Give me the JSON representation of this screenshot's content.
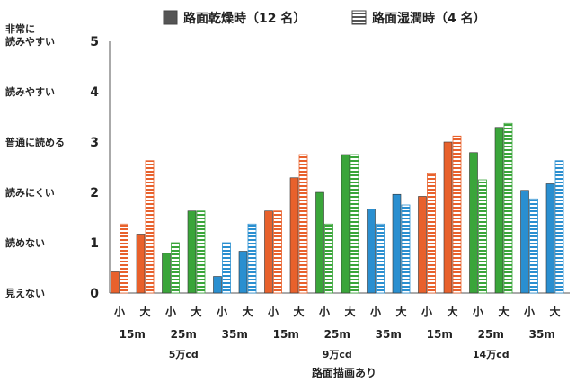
{
  "chart_data": {
    "type": "bar",
    "title": "",
    "legend": {
      "position": "top",
      "entries": [
        {
          "name": "路面乾燥時（12 名）",
          "style": "solid",
          "color": "#555555"
        },
        {
          "name": "路面湿潤時（4 名）",
          "style": "hatched",
          "color": "#555555"
        }
      ]
    },
    "xlabel": "路面描画あり",
    "ylabel": "",
    "ylim": [
      0,
      5
    ],
    "y_ticks": [
      {
        "value": 0,
        "label": "見えない"
      },
      {
        "value": 1,
        "label": "読めない"
      },
      {
        "value": 2,
        "label": "読みにくい"
      },
      {
        "value": 3,
        "label": "普通に読める"
      },
      {
        "value": 4,
        "label": "読みやすい"
      },
      {
        "value": 5,
        "label": "非常に\n読みやすい"
      }
    ],
    "grid": false,
    "series": [
      {
        "name": "路面乾燥時（12 名）",
        "style": "solid"
      },
      {
        "name": "路面湿潤時（4 名）",
        "style": "hatched"
      }
    ],
    "luminance_groups": [
      {
        "label": "5万cd",
        "distances": [
          {
            "label": "15m",
            "color": "#e8612c",
            "sizes": [
              {
                "label": "小",
                "dry": 0.42,
                "wet": 1.37
              },
              {
                "label": "大",
                "dry": 1.17,
                "wet": 2.63
              }
            ]
          },
          {
            "label": "25m",
            "color": "#3aa53a",
            "sizes": [
              {
                "label": "小",
                "dry": 0.79,
                "wet": 1.0
              },
              {
                "label": "大",
                "dry": 1.63,
                "wet": 1.63
              }
            ]
          },
          {
            "label": "35m",
            "color": "#2a8fd0",
            "sizes": [
              {
                "label": "小",
                "dry": 0.33,
                "wet": 1.0
              },
              {
                "label": "大",
                "dry": 0.83,
                "wet": 1.37
              }
            ]
          }
        ]
      },
      {
        "label": "9万cd",
        "distances": [
          {
            "label": "15m",
            "color": "#e8612c",
            "sizes": [
              {
                "label": "小",
                "dry": 1.63,
                "wet": 1.63
              },
              {
                "label": "大",
                "dry": 2.29,
                "wet": 2.75
              }
            ]
          },
          {
            "label": "25m",
            "color": "#3aa53a",
            "sizes": [
              {
                "label": "小",
                "dry": 2.0,
                "wet": 1.37
              },
              {
                "label": "大",
                "dry": 2.75,
                "wet": 2.75
              }
            ]
          },
          {
            "label": "35m",
            "color": "#2a8fd0",
            "sizes": [
              {
                "label": "小",
                "dry": 1.67,
                "wet": 1.37
              },
              {
                "label": "大",
                "dry": 1.96,
                "wet": 1.75
              }
            ]
          }
        ]
      },
      {
        "label": "14万cd",
        "distances": [
          {
            "label": "15m",
            "color": "#e8612c",
            "sizes": [
              {
                "label": "小",
                "dry": 1.92,
                "wet": 2.37
              },
              {
                "label": "大",
                "dry": 3.0,
                "wet": 3.12
              }
            ]
          },
          {
            "label": "25m",
            "color": "#3aa53a",
            "sizes": [
              {
                "label": "小",
                "dry": 2.79,
                "wet": 2.25
              },
              {
                "label": "大",
                "dry": 3.29,
                "wet": 3.37
              }
            ]
          },
          {
            "label": "35m",
            "color": "#2a8fd0",
            "sizes": [
              {
                "label": "小",
                "dry": 2.04,
                "wet": 1.87
              },
              {
                "label": "大",
                "dry": 2.17,
                "wet": 2.63
              }
            ]
          }
        ]
      }
    ]
  }
}
